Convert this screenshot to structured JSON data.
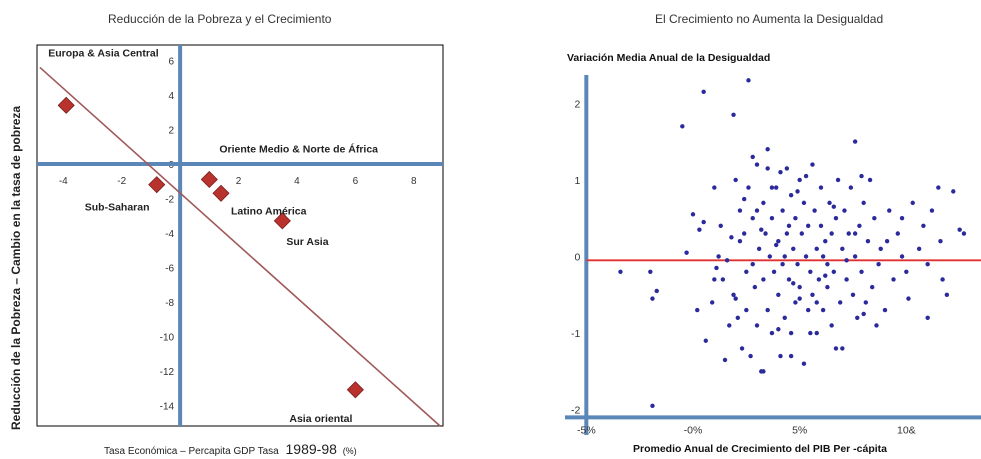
{
  "chart_data": [
    {
      "type": "scatter",
      "title": "Reducción de la Pobreza y el Crecimiento",
      "ylabel": "Reducción de la Pobreza – Cambio en la tasa de pobreza",
      "xlabel_prefix": "Tasa Económica – Percapita GDP Tasa",
      "xlabel_years": "1989-98",
      "xlabel_unit": "(%)",
      "xlim": [
        -4.9,
        9
      ],
      "ylim": [
        -15.2,
        6.9
      ],
      "x_ticks": [
        "-4",
        "-2",
        "2",
        "4",
        "6",
        "8"
      ],
      "y_ticks": [
        "6",
        "4",
        "2",
        "0",
        "-2",
        "-4",
        "-6",
        "-8",
        "-10",
        "-12",
        "-14"
      ],
      "points": [
        {
          "name": "Europa & Asia Central",
          "x": -3.9,
          "y": 3.4
        },
        {
          "name": "Sub-Saharan",
          "x": -0.8,
          "y": -1.2
        },
        {
          "name": "Oriente Medio & Norte de África",
          "x": 1.0,
          "y": -0.9
        },
        {
          "name": "Latino América",
          "x": 1.4,
          "y": -1.7
        },
        {
          "name": "Sur Asia",
          "x": 3.5,
          "y": -3.3
        },
        {
          "name": "Asia oriental",
          "x": 6.0,
          "y": -13.1
        }
      ],
      "trend_line": {
        "x1": -4.8,
        "y1": 5.6,
        "x2": 8.9,
        "y2": -15.2
      },
      "colors": {
        "marker": "#b8322e",
        "trend": "#a05a5a",
        "axis": "#5a86b8",
        "border": "#000000"
      }
    },
    {
      "type": "scatter",
      "title": "El Crecimiento no Aumenta la Desigualdad",
      "ylabel": "Variación Media Anual de la Desigualdad",
      "xlabel": "Promedio Anual de Crecimiento del PIB Per -cápita",
      "xlim": [
        -6,
        13.5
      ],
      "ylim": [
        -2.2,
        2.5
      ],
      "x_ticks": [
        "-5%",
        "-0%",
        "5%",
        "10&"
      ],
      "y_ticks": [
        "2",
        "1",
        "0",
        "-1",
        "-2"
      ],
      "trend_line": {
        "y": -0.05
      },
      "colors": {
        "marker": "#2a2a9c",
        "trend": "#e03030",
        "axis": "#5a86b8"
      },
      "points": [
        [
          2.6,
          2.3
        ],
        [
          0.5,
          2.15
        ],
        [
          -0.5,
          1.7
        ],
        [
          1.9,
          1.85
        ],
        [
          7.6,
          1.5
        ],
        [
          3.5,
          1.4
        ],
        [
          2.8,
          1.3
        ],
        [
          -3.4,
          -0.2
        ],
        [
          -2.0,
          -0.2
        ],
        [
          -1.7,
          -0.45
        ],
        [
          -1.9,
          -0.55
        ],
        [
          -1.9,
          -1.95
        ],
        [
          -0.3,
          0.05
        ],
        [
          0.3,
          0.35
        ],
        [
          0.5,
          0.45
        ],
        [
          0.6,
          -1.1
        ],
        [
          1.0,
          0.9
        ],
        [
          1.3,
          0.4
        ],
        [
          1.0,
          -0.3
        ],
        [
          0.9,
          -0.6
        ],
        [
          1.4,
          -0.3
        ],
        [
          1.6,
          -0.05
        ],
        [
          1.8,
          0.25
        ],
        [
          1.9,
          -0.5
        ],
        [
          2.0,
          1.0
        ],
        [
          2.2,
          0.6
        ],
        [
          2.1,
          -0.8
        ],
        [
          2.3,
          -1.2
        ],
        [
          2.4,
          0.3
        ],
        [
          2.5,
          -0.2
        ],
        [
          2.6,
          0.9
        ],
        [
          2.7,
          -1.3
        ],
        [
          2.8,
          0.5
        ],
        [
          2.9,
          -0.4
        ],
        [
          3.0,
          1.2
        ],
        [
          3.0,
          -0.9
        ],
        [
          3.1,
          0.1
        ],
        [
          3.2,
          -1.5
        ],
        [
          3.3,
          0.7
        ],
        [
          3.3,
          -0.3
        ],
        [
          3.4,
          0.3
        ],
        [
          3.5,
          1.15
        ],
        [
          3.5,
          -0.7
        ],
        [
          3.6,
          0.0
        ],
        [
          3.7,
          -1.0
        ],
        [
          3.7,
          0.5
        ],
        [
          3.8,
          -0.2
        ],
        [
          3.9,
          0.9
        ],
        [
          4.0,
          -0.5
        ],
        [
          4.0,
          0.2
        ],
        [
          4.1,
          -1.3
        ],
        [
          4.1,
          1.1
        ],
        [
          4.2,
          0.6
        ],
        [
          4.2,
          -0.1
        ],
        [
          4.3,
          -0.8
        ],
        [
          4.4,
          0.3
        ],
        [
          4.4,
          1.15
        ],
        [
          4.5,
          -0.3
        ],
        [
          4.6,
          0.8
        ],
        [
          4.6,
          -1.0
        ],
        [
          4.7,
          0.1
        ],
        [
          4.8,
          -0.6
        ],
        [
          4.8,
          0.5
        ],
        [
          4.9,
          -0.1
        ],
        [
          5.0,
          1.0
        ],
        [
          5.0,
          -0.4
        ],
        [
          5.1,
          0.3
        ],
        [
          5.2,
          -1.4
        ],
        [
          5.2,
          0.7
        ],
        [
          5.3,
          0.0
        ],
        [
          5.4,
          -0.7
        ],
        [
          5.4,
          0.4
        ],
        [
          5.5,
          -0.2
        ],
        [
          5.6,
          1.2
        ],
        [
          5.6,
          -0.5
        ],
        [
          5.7,
          0.6
        ],
        [
          5.8,
          0.1
        ],
        [
          5.8,
          -1.0
        ],
        [
          5.9,
          -0.3
        ],
        [
          6.0,
          0.4
        ],
        [
          6.0,
          0.9
        ],
        [
          6.1,
          -0.7
        ],
        [
          6.2,
          0.2
        ],
        [
          6.3,
          -0.1
        ],
        [
          6.3,
          -0.4
        ],
        [
          6.4,
          0.7
        ],
        [
          6.5,
          -0.9
        ],
        [
          6.5,
          0.3
        ],
        [
          6.6,
          -0.2
        ],
        [
          6.7,
          0.5
        ],
        [
          6.8,
          1.0
        ],
        [
          6.9,
          -0.6
        ],
        [
          7.0,
          0.1
        ],
        [
          7.0,
          -1.2
        ],
        [
          7.1,
          0.6
        ],
        [
          7.2,
          -0.3
        ],
        [
          7.3,
          0.3
        ],
        [
          7.4,
          0.9
        ],
        [
          7.5,
          -0.5
        ],
        [
          7.6,
          0.0
        ],
        [
          7.7,
          -0.8
        ],
        [
          7.8,
          0.4
        ],
        [
          7.9,
          -0.2
        ],
        [
          8.0,
          0.7
        ],
        [
          8.1,
          -0.6
        ],
        [
          8.2,
          0.2
        ],
        [
          8.3,
          1.0
        ],
        [
          8.4,
          -0.4
        ],
        [
          8.5,
          0.5
        ],
        [
          8.6,
          -0.9
        ],
        [
          8.8,
          0.1
        ],
        [
          9.0,
          -0.7
        ],
        [
          9.2,
          0.6
        ],
        [
          9.4,
          -0.3
        ],
        [
          9.6,
          0.3
        ],
        [
          9.8,
          0.5
        ],
        [
          10.0,
          -0.2
        ],
        [
          10.3,
          0.7
        ],
        [
          10.6,
          0.1
        ],
        [
          10.8,
          0.4
        ],
        [
          11.0,
          -0.1
        ],
        [
          11.2,
          0.6
        ],
        [
          11.5,
          0.9
        ],
        [
          11.7,
          -0.3
        ],
        [
          11.9,
          -0.5
        ],
        [
          12.2,
          0.85
        ],
        [
          12.5,
          0.35
        ],
        [
          11.0,
          -0.8
        ],
        [
          9.8,
          0.0
        ],
        [
          7.9,
          1.05
        ],
        [
          1.5,
          -1.35
        ],
        [
          2.0,
          -0.55
        ],
        [
          4.6,
          -1.3
        ],
        [
          3.3,
          -1.5
        ],
        [
          2.4,
          0.75
        ],
        [
          6.1,
          0.0
        ],
        [
          5.5,
          -1.0
        ],
        [
          4.3,
          0.0
        ],
        [
          3.7,
          0.9
        ],
        [
          2.8,
          -0.1
        ],
        [
          6.7,
          -1.2
        ],
        [
          8.0,
          -0.75
        ],
        [
          3.2,
          0.35
        ],
        [
          4.9,
          0.85
        ],
        [
          5.8,
          -0.6
        ],
        [
          1.2,
          0.0
        ],
        [
          0.2,
          -0.7
        ],
        [
          7.2,
          -0.05
        ],
        [
          4.0,
          -0.95
        ],
        [
          6.6,
          0.65
        ],
        [
          3.0,
          0.6
        ],
        [
          5.3,
          1.05
        ],
        [
          2.2,
          0.2
        ],
        [
          9.1,
          0.2
        ],
        [
          1.7,
          -0.9
        ],
        [
          4.5,
          0.4
        ],
        [
          7.6,
          0.3
        ],
        [
          5.0,
          -0.55
        ],
        [
          8.7,
          -0.1
        ],
        [
          2.5,
          -0.7
        ],
        [
          6.2,
          -0.25
        ],
        [
          3.9,
          0.15
        ],
        [
          4.7,
          -0.35
        ],
        [
          10.1,
          -0.55
        ],
        [
          11.6,
          0.2
        ],
        [
          0.0,
          0.55
        ],
        [
          1.1,
          -0.15
        ],
        [
          12.7,
          0.3
        ]
      ]
    }
  ]
}
